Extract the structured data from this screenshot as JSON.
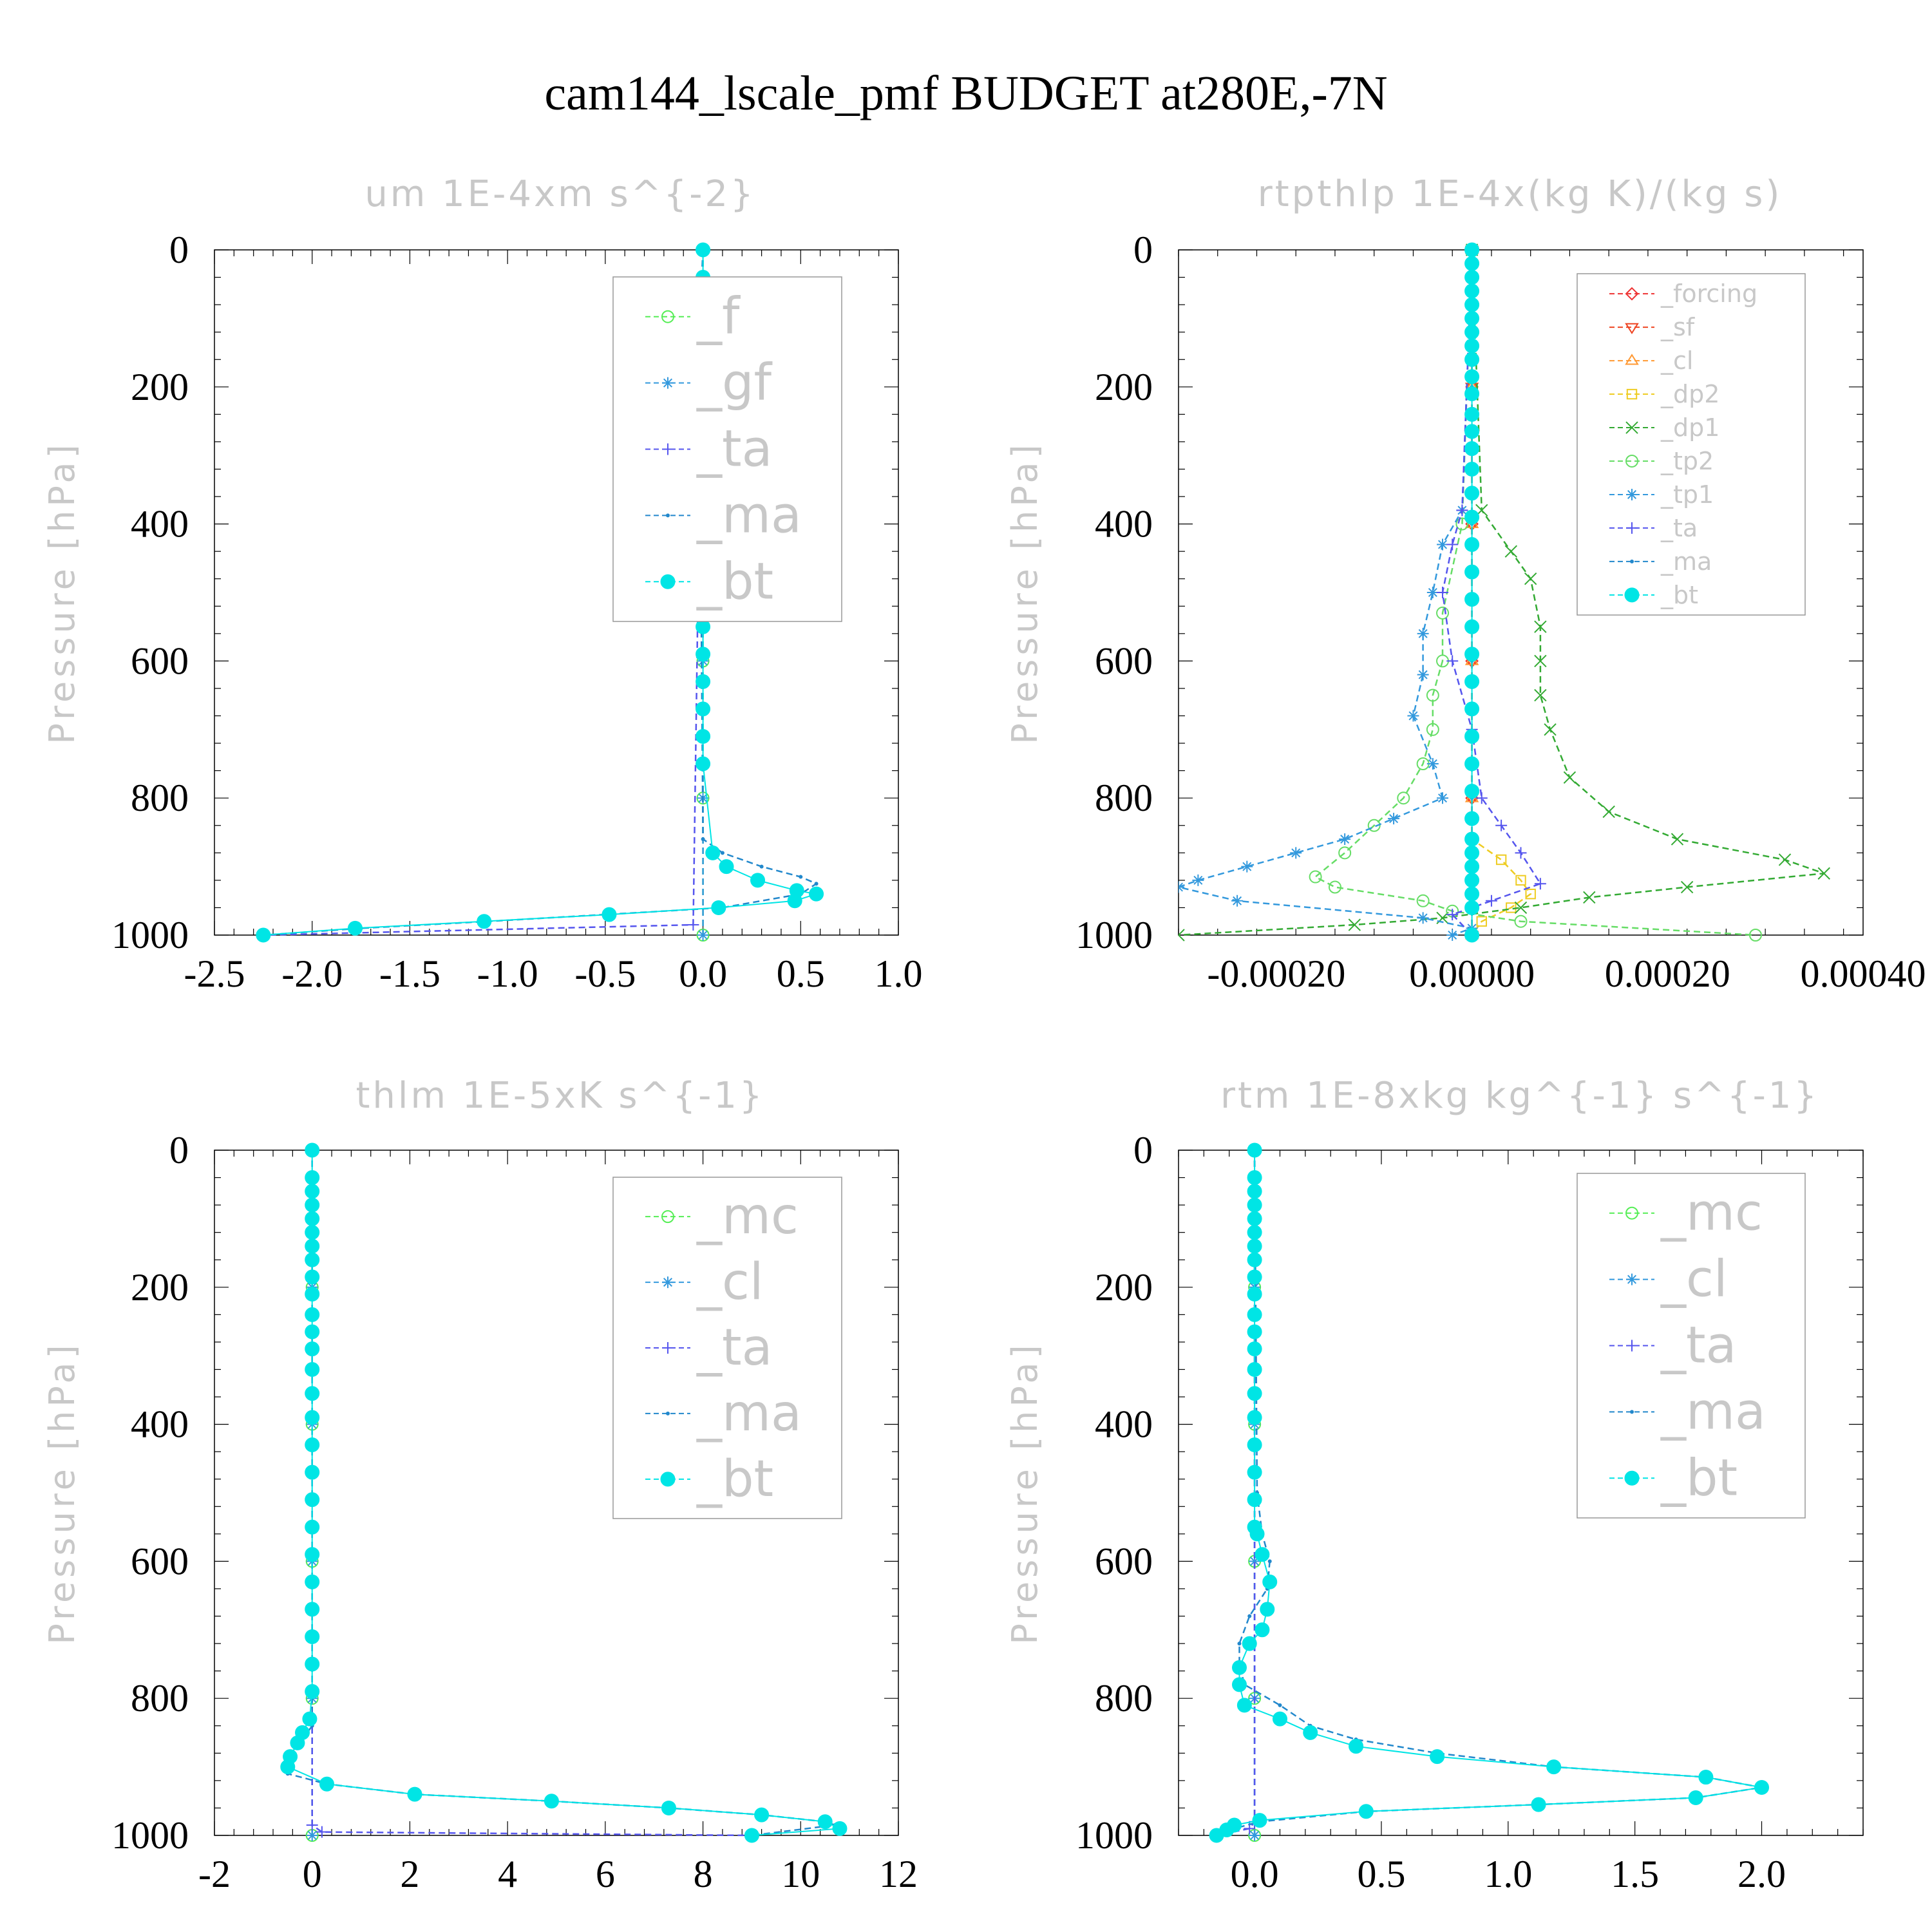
{
  "figure": {
    "title": "cam144_lscale_pmf  BUDGET at280E,-7N"
  },
  "chart_data": [
    {
      "type": "line",
      "title": "um  1E-4xm s^{-2}",
      "ylabel": "Pressure [hPa]",
      "xlim": [
        -2.5,
        1.0
      ],
      "ylim": [
        1000,
        0
      ],
      "xticks": [
        "-2.5",
        "-2.0",
        "-1.5",
        "-1.0",
        "-0.5",
        "0.0",
        "0.5",
        "1.0"
      ],
      "yticks": [
        "0",
        "200",
        "400",
        "600",
        "800",
        "1000"
      ],
      "legend": [
        "_f",
        "_gf",
        "_ta",
        "_ma",
        "_bt"
      ],
      "legend_size": "big",
      "series": [
        {
          "name": "_f",
          "color": "#55ee55",
          "marker": "circle",
          "x": [
            0,
            0,
            0,
            0,
            0,
            0
          ],
          "y": [
            0,
            200,
            400,
            600,
            800,
            1000
          ]
        },
        {
          "name": "_gf",
          "color": "#3399dd",
          "marker": "star",
          "x": [
            0,
            0,
            0,
            0,
            0,
            0
          ],
          "y": [
            0,
            200,
            400,
            600,
            800,
            1000
          ]
        },
        {
          "name": "_ta",
          "color": "#5555ee",
          "marker": "plus",
          "x": [
            0,
            -0.05,
            -2.25
          ],
          "y": [
            0,
            985,
            1000
          ]
        },
        {
          "name": "_ma",
          "color": "#2288cc",
          "marker": "dot",
          "x": [
            0,
            -0.02,
            0,
            0.1,
            0.3,
            0.5,
            0.58,
            0.5,
            0.1,
            -0.5,
            -1.1,
            -1.75,
            -2.25
          ],
          "y": [
            0,
            120,
            860,
            880,
            900,
            915,
            925,
            940,
            960,
            970,
            980,
            990,
            1000
          ]
        },
        {
          "name": "_bt",
          "color": "#00e5e5",
          "marker": "filled",
          "x": [
            0,
            0,
            0,
            0,
            0,
            -0.01,
            -0.02,
            0,
            0,
            0,
            0,
            0,
            0,
            0,
            0,
            0,
            0,
            0,
            0,
            0,
            0,
            0,
            0,
            0,
            0,
            0.05,
            0.12,
            0.28,
            0.48,
            0.58,
            0.47,
            0.08,
            -0.48,
            -1.12,
            -1.78,
            -2.25
          ],
          "y": [
            0,
            40,
            60,
            80,
            100,
            120,
            140,
            160,
            185,
            210,
            240,
            265,
            290,
            320,
            355,
            390,
            430,
            470,
            510,
            550,
            590,
            630,
            670,
            710,
            750,
            880,
            900,
            920,
            935,
            940,
            950,
            960,
            970,
            980,
            990,
            1000
          ]
        }
      ]
    },
    {
      "type": "line",
      "title": "rtpthlp  1E-4x(kg K)/(kg s)",
      "ylabel": "Pressure [hPa]",
      "xlim": [
        -0.0003,
        0.0004
      ],
      "ylim": [
        1000,
        0
      ],
      "xticks": [
        "-0.00020",
        "0.00000",
        "0.00020",
        "0.00040"
      ],
      "xtick_values": [
        -0.0002,
        0,
        0.0002,
        0.0004
      ],
      "yticks": [
        "0",
        "200",
        "400",
        "600",
        "800",
        "1000"
      ],
      "legend": [
        "_forcing",
        "_sf",
        "_cl",
        "_dp2",
        "_dp1",
        "_tp2",
        "_tp1",
        "_ta",
        "_ma",
        "_bt"
      ],
      "legend_size": "small",
      "series": [
        {
          "name": "_forcing",
          "color": "#ee3333",
          "marker": "diamond",
          "x": [
            0,
            0,
            0,
            0,
            0,
            0
          ],
          "y": [
            0,
            200,
            400,
            600,
            800,
            1000
          ]
        },
        {
          "name": "_sf",
          "color": "#ee4422",
          "marker": "tri-down",
          "x": [
            0,
            0,
            0,
            0,
            0,
            0
          ],
          "y": [
            0,
            200,
            400,
            600,
            800,
            1000
          ]
        },
        {
          "name": "_cl",
          "color": "#ff9933",
          "marker": "tri-up",
          "x": [
            0,
            0,
            0,
            0,
            0,
            0
          ],
          "y": [
            0,
            200,
            400,
            600,
            800,
            1000
          ]
        },
        {
          "name": "_dp2",
          "color": "#eecc22",
          "marker": "square",
          "x": [
            0,
            0,
            3e-05,
            5e-05,
            6e-05,
            4e-05,
            1e-05,
            0
          ],
          "y": [
            0,
            860,
            890,
            920,
            940,
            960,
            980,
            1000
          ]
        },
        {
          "name": "_dp1",
          "color": "#33aa33",
          "marker": "cross",
          "x": [
            0,
            1e-05,
            4e-05,
            6e-05,
            7e-05,
            7e-05,
            7e-05,
            8e-05,
            0.0001,
            0.00014,
            0.00021,
            0.00032,
            0.00036,
            0.00022,
            0.00012,
            5e-05,
            -3e-05,
            -0.00012,
            -0.0003
          ],
          "y": [
            0,
            380,
            440,
            480,
            550,
            600,
            650,
            700,
            770,
            820,
            860,
            890,
            910,
            930,
            945,
            960,
            975,
            985,
            1000
          ]
        },
        {
          "name": "_tp2",
          "color": "#66dd66",
          "marker": "circle",
          "x": [
            0,
            -1e-05,
            -3e-05,
            -3e-05,
            -4e-05,
            -4e-05,
            -5e-05,
            -7e-05,
            -0.0001,
            -0.00013,
            -0.00016,
            -0.00014,
            -5e-05,
            -2e-05,
            5e-05,
            0.00029
          ],
          "y": [
            0,
            400,
            530,
            600,
            650,
            700,
            750,
            800,
            840,
            880,
            915,
            930,
            950,
            965,
            980,
            1000
          ]
        },
        {
          "name": "_tp1",
          "color": "#3399dd",
          "marker": "star",
          "x": [
            0,
            -1e-05,
            -3e-05,
            -4e-05,
            -5e-05,
            -5e-05,
            -6e-05,
            -4e-05,
            -3e-05,
            -8e-05,
            -0.00013,
            -0.00018,
            -0.00023,
            -0.00028,
            -0.0003,
            -0.00024,
            -5e-05,
            0,
            -2e-05
          ],
          "y": [
            0,
            380,
            430,
            500,
            560,
            620,
            680,
            750,
            800,
            830,
            860,
            880,
            900,
            920,
            930,
            950,
            975,
            990,
            1000
          ]
        },
        {
          "name": "_ta",
          "color": "#5555ee",
          "marker": "plus",
          "x": [
            0,
            -1e-05,
            -2e-05,
            -3e-05,
            -2e-05,
            0,
            1e-05,
            3e-05,
            5e-05,
            7e-05,
            2e-05,
            -2e-05,
            0
          ],
          "y": [
            0,
            380,
            430,
            500,
            600,
            700,
            800,
            840,
            880,
            925,
            950,
            970,
            1000
          ]
        },
        {
          "name": "_ma",
          "color": "#2288cc",
          "marker": "dot",
          "x": [
            0,
            0,
            0,
            0,
            0,
            0
          ],
          "y": [
            0,
            200,
            400,
            600,
            800,
            1000
          ]
        },
        {
          "name": "_bt",
          "color": "#00e5e5",
          "marker": "filled",
          "x": [
            0,
            0,
            0,
            0,
            0,
            0,
            0,
            0,
            0,
            0,
            0,
            0,
            0,
            0,
            0,
            0,
            0,
            0,
            0,
            0,
            0,
            0,
            0,
            0,
            0,
            0,
            0,
            0,
            0,
            0,
            0,
            0,
            0,
            0,
            0
          ],
          "y": [
            0,
            20,
            40,
            60,
            80,
            100,
            120,
            140,
            160,
            185,
            210,
            240,
            265,
            290,
            320,
            355,
            390,
            430,
            470,
            510,
            550,
            590,
            630,
            670,
            710,
            750,
            790,
            830,
            860,
            880,
            900,
            920,
            940,
            960,
            1000
          ]
        }
      ]
    },
    {
      "type": "line",
      "title": "thlm  1E-5xK s^{-1}",
      "ylabel": "Pressure [hPa]",
      "xlim": [
        -2,
        12
      ],
      "ylim": [
        1000,
        0
      ],
      "xticks": [
        "-2",
        "0",
        "2",
        "4",
        "6",
        "8",
        "10",
        "12"
      ],
      "yticks": [
        "0",
        "200",
        "400",
        "600",
        "800",
        "1000"
      ],
      "legend": [
        "_mc",
        "_cl",
        "_ta",
        "_ma",
        "_bt"
      ],
      "legend_size": "big",
      "series": [
        {
          "name": "_mc",
          "color": "#55ee55",
          "marker": "circle",
          "x": [
            0,
            0,
            0,
            0,
            0,
            0
          ],
          "y": [
            0,
            200,
            400,
            600,
            800,
            1000
          ]
        },
        {
          "name": "_cl",
          "color": "#3399dd",
          "marker": "star",
          "x": [
            0,
            0,
            0,
            0,
            0,
            0
          ],
          "y": [
            0,
            200,
            400,
            600,
            800,
            1000
          ]
        },
        {
          "name": "_ta",
          "color": "#5555ee",
          "marker": "plus",
          "x": [
            0,
            0,
            0.2,
            9.0
          ],
          "y": [
            0,
            985,
            995,
            1000
          ]
        },
        {
          "name": "_ma",
          "color": "#2288cc",
          "marker": "dot",
          "x": [
            0,
            0,
            -0.2,
            -0.5,
            -0.5,
            0.3,
            2.1,
            4.9,
            7.3,
            9.2,
            10.5,
            10.7,
            9.0
          ],
          "y": [
            0,
            840,
            860,
            895,
            910,
            925,
            940,
            950,
            960,
            970,
            980,
            985,
            1000
          ]
        },
        {
          "name": "_bt",
          "color": "#00e5e5",
          "marker": "filled",
          "x": [
            0,
            0,
            0,
            0,
            0,
            0,
            0,
            0,
            0,
            0,
            0,
            0,
            0,
            0,
            0,
            0,
            0,
            0,
            0,
            0,
            0,
            0,
            0,
            0,
            0,
            0,
            -0.05,
            -0.2,
            -0.3,
            -0.45,
            -0.5,
            0.3,
            2.1,
            4.9,
            7.3,
            9.2,
            10.5,
            10.8,
            9.0
          ],
          "y": [
            0,
            40,
            60,
            80,
            100,
            120,
            140,
            160,
            185,
            210,
            240,
            265,
            290,
            320,
            355,
            390,
            430,
            470,
            510,
            550,
            590,
            630,
            670,
            710,
            750,
            790,
            830,
            850,
            865,
            885,
            900,
            925,
            940,
            950,
            960,
            970,
            980,
            990,
            1000
          ]
        }
      ]
    },
    {
      "type": "line",
      "title": "rtm  1E-8xkg kg^{-1} s^{-1}",
      "ylabel": "Pressure [hPa]",
      "xlim": [
        -0.3,
        2.4
      ],
      "ylim": [
        1000,
        0
      ],
      "xticks": [
        "0.0",
        "0.5",
        "1.0",
        "1.5",
        "2.0"
      ],
      "xtick_values": [
        0,
        0.5,
        1.0,
        1.5,
        2.0
      ],
      "yticks": [
        "0",
        "200",
        "400",
        "600",
        "800",
        "1000"
      ],
      "legend": [
        "_mc",
        "_cl",
        "_ta",
        "_ma",
        "_bt"
      ],
      "legend_size": "big",
      "series": [
        {
          "name": "_mc",
          "color": "#55ee55",
          "marker": "circle",
          "x": [
            0,
            0,
            0,
            0,
            0,
            0
          ],
          "y": [
            0,
            200,
            400,
            600,
            800,
            1000
          ]
        },
        {
          "name": "_cl",
          "color": "#3399dd",
          "marker": "star",
          "x": [
            0,
            0,
            0,
            0,
            0,
            0
          ],
          "y": [
            0,
            200,
            400,
            600,
            800,
            1000
          ]
        },
        {
          "name": "_ta",
          "color": "#5555ee",
          "marker": "plus",
          "x": [
            0,
            0,
            -0.02,
            -0.15
          ],
          "y": [
            0,
            980,
            990,
            1000
          ]
        },
        {
          "name": "_ma",
          "color": "#2288cc",
          "marker": "dot",
          "x": [
            0,
            0.01,
            0.03,
            0.06,
            0.05,
            -0.02,
            -0.06,
            -0.06,
            -0.04,
            0.1,
            0.22,
            0.4,
            0.72,
            1.18,
            1.78,
            2.0,
            1.74,
            1.12,
            0.44,
            0.02,
            -0.08,
            -0.15
          ],
          "y": [
            0,
            500,
            560,
            600,
            640,
            680,
            720,
            750,
            780,
            810,
            840,
            860,
            880,
            900,
            915,
            930,
            945,
            955,
            965,
            980,
            990,
            1000
          ]
        },
        {
          "name": "_bt",
          "color": "#00e5e5",
          "marker": "filled",
          "x": [
            0,
            0,
            0,
            0,
            0,
            0,
            0,
            0,
            0,
            0,
            0,
            0,
            0,
            0,
            0,
            0,
            0,
            0,
            0,
            0,
            0.01,
            0.03,
            0.06,
            0.05,
            0.03,
            -0.02,
            -0.06,
            -0.06,
            -0.04,
            0.1,
            0.22,
            0.4,
            0.72,
            1.18,
            1.78,
            2.0,
            1.74,
            1.12,
            0.44,
            0.02,
            -0.08,
            -0.11,
            -0.15
          ],
          "y": [
            0,
            40,
            60,
            80,
            100,
            120,
            140,
            160,
            185,
            210,
            240,
            265,
            290,
            320,
            355,
            390,
            430,
            470,
            510,
            550,
            560,
            590,
            630,
            670,
            700,
            720,
            755,
            780,
            810,
            830,
            850,
            870,
            885,
            900,
            915,
            930,
            945,
            955,
            965,
            978,
            985,
            992,
            1000
          ]
        }
      ]
    }
  ]
}
